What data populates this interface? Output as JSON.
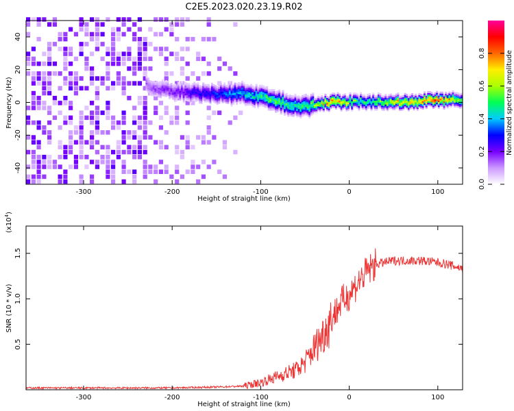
{
  "figure_title": "C2E5.2023.020.23.19.R02",
  "colors": {
    "snr_line": "#ee3333",
    "frame": "#000000"
  },
  "chart_data": [
    {
      "type": "heatmap",
      "xlabel": "Height of straight line (km)",
      "ylabel": "Frequency (Hz)",
      "xlim": [
        -365,
        128
      ],
      "ylim": [
        -50,
        50
      ],
      "x_ticks": [
        -300,
        -200,
        -100,
        0,
        100
      ],
      "x_tick_labels": [
        "-300",
        "-200",
        "-100",
        "0",
        "100"
      ],
      "y_ticks": [
        -40,
        -20,
        0,
        20,
        40
      ],
      "y_tick_labels": [
        "-40",
        "-20",
        "0",
        "20",
        "40"
      ],
      "grid": false,
      "colorbar": {
        "label": "Normalized spectral amplitude",
        "range": [
          0,
          1
        ],
        "ticks": [
          0.0,
          0.2,
          0.4,
          0.6,
          0.8
        ],
        "tick_labels": [
          "0.0",
          "0.2",
          "0.4",
          "0.6",
          "0.8"
        ],
        "colormap": [
          "#ffffff",
          "#cc99ff",
          "#7700ff",
          "#0000ff",
          "#00ccff",
          "#00ff55",
          "#aaff00",
          "#ffee00",
          "#ff6600",
          "#ff0000",
          "#ff0099"
        ]
      },
      "ridge": {
        "x": [
          -230,
          -200,
          -160,
          -120,
          -100,
          -80,
          -60,
          -40,
          -20,
          0,
          20,
          60,
          100,
          128
        ],
        "freq": [
          10,
          6,
          5,
          5,
          3,
          0,
          -3,
          -2,
          0,
          0,
          0,
          0,
          1,
          1
        ],
        "peak_amplitude": [
          0.15,
          0.2,
          0.3,
          0.45,
          0.5,
          0.55,
          0.5,
          0.6,
          0.85,
          0.6,
          0.5,
          0.75,
          0.85,
          0.6
        ]
      }
    },
    {
      "type": "line",
      "xlabel": "Height of straight line (km)",
      "ylabel": "SNR (10 * v/v)",
      "y_multiplier": "(x10",
      "y_multiplier_exponent": "4",
      "y_multiplier_close": ")",
      "xlim": [
        -365,
        128
      ],
      "ylim": [
        0,
        1.8
      ],
      "x_ticks": [
        -300,
        -200,
        -100,
        0,
        100
      ],
      "x_tick_labels": [
        "-300",
        "-200",
        "-100",
        "0",
        "100"
      ],
      "y_ticks": [
        0.5,
        1.0,
        1.5
      ],
      "y_tick_labels": [
        "0.5",
        "1.0",
        "1.5"
      ],
      "grid": false,
      "series": [
        {
          "x": [
            -365,
            -300,
            -200,
            -150,
            -120,
            -100,
            -80,
            -60,
            -50,
            -40,
            -30,
            -20,
            -10,
            0,
            10,
            20,
            30,
            50,
            80,
            100,
            110,
            118,
            122,
            128
          ],
          "y": [
            0.02,
            0.02,
            0.02,
            0.03,
            0.04,
            0.08,
            0.15,
            0.22,
            0.3,
            0.45,
            0.6,
            0.78,
            0.95,
            1.05,
            1.18,
            1.3,
            1.38,
            1.42,
            1.42,
            1.4,
            1.38,
            1.36,
            1.35,
            1.33
          ]
        }
      ]
    }
  ]
}
